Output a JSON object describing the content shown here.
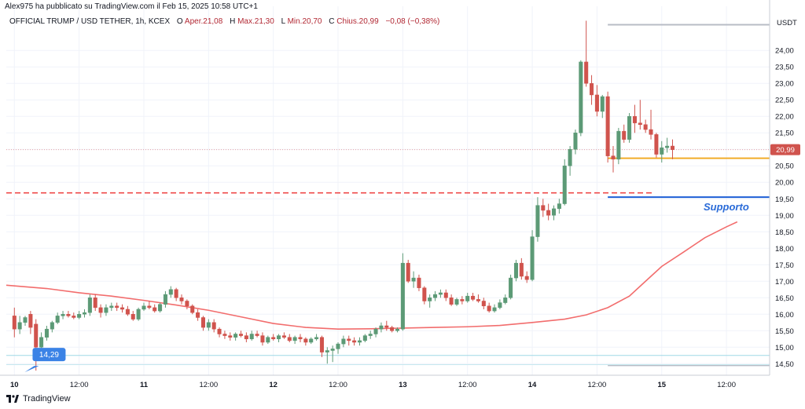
{
  "header": {
    "publisher": "Alex975 ha pubblicato su TradingView.com il Feb 15, 2025 10:58 UTC+1"
  },
  "info": {
    "symbol": "OFFICIAL TRUMP / USD TETHER, 1h, KCEX",
    "open_label": "O",
    "open_val": "Aper.21,08",
    "high_label": "H",
    "high_val": "Max.21,30",
    "low_label": "L",
    "low_val": "Min.20,70",
    "close_label": "C",
    "close_val": "Chius.20,99",
    "change_val": "−0,08 (−0,38%)"
  },
  "footer": {
    "brand": "TradingView"
  },
  "colors": {
    "up": "#5c9a76",
    "down": "#d0534d",
    "ma": "#f26d6d",
    "support_line": "#1e5fd6",
    "support_text": "#2a6bd8",
    "orange_line": "#f0a81e",
    "dashed_red": "#ef4848",
    "price_tag": "#d0534d",
    "low_badge": "#3b83e6"
  },
  "chart_data": {
    "type": "candlestick",
    "timeframe": "1h",
    "quote_currency": "USDT",
    "y_ticks": [
      "24,00",
      "23,50",
      "23,00",
      "22,50",
      "22,00",
      "21,50",
      "21,00",
      "20,50",
      "20,00",
      "19,50",
      "19,00",
      "18,50",
      "18,00",
      "17,50",
      "17,00",
      "16,50",
      "16,00",
      "15,50",
      "15,00",
      "14,50"
    ],
    "y_tick_values": [
      24,
      23.5,
      23,
      22.5,
      22,
      21.5,
      21,
      20.5,
      20,
      19.5,
      19,
      18.5,
      18,
      17.5,
      17,
      16.5,
      16,
      15.5,
      15,
      14.5
    ],
    "ylim": [
      14.15,
      25.1
    ],
    "x_ticks": [
      "10",
      "12:00",
      "11",
      "12:00",
      "12",
      "12:00",
      "13",
      "12:00",
      "14",
      "12:00",
      "15",
      "12:00"
    ],
    "x_tick_hours": [
      0,
      12,
      24,
      36,
      48,
      60,
      72,
      84,
      96,
      108,
      120,
      132
    ],
    "x_range_hours": [
      -1.5,
      140
    ],
    "last_price": 20.99,
    "last_price_label": "20,99",
    "support_level": 19.55,
    "support_label": "Supporto",
    "dashed_level": 19.68,
    "orange_level": 20.73,
    "low_marker": {
      "value": 14.29,
      "label": "14,29",
      "hour": 2.5
    },
    "top_range_line": 24.78,
    "bottom_range_line": 14.45,
    "moving_average": [
      [
        -1.5,
        16.88
      ],
      [
        6,
        16.78
      ],
      [
        12,
        16.65
      ],
      [
        18,
        16.55
      ],
      [
        24,
        16.42
      ],
      [
        30,
        16.28
      ],
      [
        36,
        16.12
      ],
      [
        42,
        15.92
      ],
      [
        48,
        15.72
      ],
      [
        54,
        15.6
      ],
      [
        60,
        15.55
      ],
      [
        66,
        15.56
      ],
      [
        72,
        15.58
      ],
      [
        78,
        15.6
      ],
      [
        84,
        15.62
      ],
      [
        90,
        15.66
      ],
      [
        96,
        15.75
      ],
      [
        102,
        15.85
      ],
      [
        106,
        15.98
      ],
      [
        110,
        16.2
      ],
      [
        114,
        16.55
      ],
      [
        117,
        17.0
      ],
      [
        120,
        17.45
      ],
      [
        124,
        17.88
      ],
      [
        128,
        18.32
      ],
      [
        132,
        18.65
      ],
      [
        134,
        18.8
      ]
    ],
    "candles": [
      [
        0,
        15.95,
        16.2,
        15.3,
        15.55
      ],
      [
        1,
        15.55,
        15.95,
        15.4,
        15.75
      ],
      [
        2,
        15.75,
        15.95,
        15.65,
        15.9
      ],
      [
        3,
        16.0,
        16.1,
        15.4,
        15.6
      ],
      [
        4,
        15.7,
        15.85,
        14.29,
        15.0
      ],
      [
        5,
        15.0,
        15.45,
        14.9,
        15.3
      ],
      [
        6,
        15.3,
        15.65,
        15.2,
        15.55
      ],
      [
        7,
        15.55,
        15.8,
        15.45,
        15.75
      ],
      [
        8,
        15.75,
        16.05,
        15.7,
        15.95
      ],
      [
        9,
        15.95,
        16.1,
        15.85,
        16.0
      ],
      [
        10,
        16.0,
        16.1,
        15.9,
        15.95
      ],
      [
        11,
        15.95,
        16.05,
        15.85,
        15.9
      ],
      [
        12,
        15.9,
        16.1,
        15.85,
        16.0
      ],
      [
        13,
        16.0,
        16.15,
        15.9,
        16.05
      ],
      [
        14,
        16.05,
        16.6,
        15.95,
        16.5
      ],
      [
        15,
        16.5,
        16.6,
        16.1,
        16.2
      ],
      [
        16,
        16.2,
        16.3,
        15.9,
        16.05
      ],
      [
        17,
        16.05,
        16.3,
        15.95,
        16.2
      ],
      [
        18,
        16.2,
        16.35,
        16.1,
        16.25
      ],
      [
        19,
        16.25,
        16.35,
        16.1,
        16.2
      ],
      [
        20,
        16.2,
        16.3,
        16.05,
        16.15
      ],
      [
        21,
        16.15,
        16.25,
        15.95,
        16.0
      ],
      [
        22,
        16.0,
        16.1,
        15.8,
        15.85
      ],
      [
        23,
        15.85,
        16.2,
        15.8,
        16.15
      ],
      [
        24,
        16.15,
        16.35,
        16.1,
        16.25
      ],
      [
        25,
        16.25,
        16.4,
        16.15,
        16.2
      ],
      [
        26,
        16.2,
        16.3,
        16.05,
        16.1
      ],
      [
        27,
        16.1,
        16.35,
        16.05,
        16.3
      ],
      [
        28,
        16.3,
        16.7,
        16.2,
        16.6
      ],
      [
        29,
        16.6,
        16.85,
        16.5,
        16.75
      ],
      [
        30,
        16.75,
        16.8,
        16.4,
        16.5
      ],
      [
        31,
        16.5,
        16.6,
        16.3,
        16.4
      ],
      [
        32,
        16.4,
        16.45,
        16.15,
        16.25
      ],
      [
        33,
        16.25,
        16.3,
        16.0,
        16.05
      ],
      [
        34,
        16.05,
        16.15,
        15.8,
        15.9
      ],
      [
        35,
        15.9,
        15.95,
        15.5,
        15.6
      ],
      [
        36,
        15.6,
        15.85,
        15.5,
        15.75
      ],
      [
        37,
        15.75,
        15.85,
        15.45,
        15.55
      ],
      [
        38,
        15.55,
        15.6,
        15.3,
        15.4
      ],
      [
        39,
        15.4,
        15.5,
        15.25,
        15.35
      ],
      [
        40,
        15.35,
        15.45,
        15.2,
        15.3
      ],
      [
        41,
        15.3,
        15.45,
        15.2,
        15.4
      ],
      [
        42,
        15.4,
        15.5,
        15.3,
        15.35
      ],
      [
        43,
        15.35,
        15.45,
        15.15,
        15.25
      ],
      [
        44,
        15.25,
        15.5,
        15.2,
        15.4
      ],
      [
        45,
        15.4,
        15.5,
        15.3,
        15.35
      ],
      [
        46,
        15.35,
        15.45,
        15.05,
        15.15
      ],
      [
        47,
        15.15,
        15.35,
        15.1,
        15.3
      ],
      [
        48,
        15.3,
        15.4,
        15.2,
        15.25
      ],
      [
        49,
        15.25,
        15.4,
        15.15,
        15.35
      ],
      [
        50,
        15.35,
        15.45,
        15.25,
        15.3
      ],
      [
        51,
        15.3,
        15.4,
        15.15,
        15.2
      ],
      [
        52,
        15.2,
        15.35,
        15.1,
        15.3
      ],
      [
        53,
        15.3,
        15.4,
        15.15,
        15.25
      ],
      [
        54,
        15.25,
        15.3,
        15.05,
        15.15
      ],
      [
        55,
        15.15,
        15.3,
        15.1,
        15.25
      ],
      [
        56,
        15.25,
        15.4,
        15.2,
        15.3
      ],
      [
        57,
        15.3,
        15.35,
        14.7,
        14.85
      ],
      [
        58,
        14.85,
        15.0,
        14.5,
        14.9
      ],
      [
        59,
        14.9,
        15.05,
        14.55,
        14.95
      ],
      [
        60,
        14.95,
        15.15,
        14.8,
        15.1
      ],
      [
        61,
        15.1,
        15.35,
        15.0,
        15.25
      ],
      [
        62,
        15.25,
        15.35,
        15.05,
        15.2
      ],
      [
        63,
        15.2,
        15.3,
        15.05,
        15.15
      ],
      [
        64,
        15.15,
        15.3,
        15.05,
        15.2
      ],
      [
        65,
        15.2,
        15.4,
        15.15,
        15.35
      ],
      [
        66,
        15.35,
        15.5,
        15.25,
        15.4
      ],
      [
        67,
        15.4,
        15.6,
        15.3,
        15.55
      ],
      [
        68,
        15.55,
        15.75,
        15.45,
        15.65
      ],
      [
        69,
        15.65,
        15.8,
        15.5,
        15.6
      ],
      [
        70,
        15.6,
        15.65,
        15.45,
        15.5
      ],
      [
        71,
        15.5,
        15.6,
        15.45,
        15.55
      ],
      [
        72,
        15.55,
        17.85,
        15.5,
        17.55
      ],
      [
        73,
        17.55,
        17.65,
        16.95,
        17.0
      ],
      [
        74,
        17.0,
        17.3,
        16.8,
        17.1
      ],
      [
        75,
        17.1,
        17.2,
        16.7,
        16.8
      ],
      [
        76,
        16.8,
        16.85,
        16.3,
        16.4
      ],
      [
        77,
        16.4,
        16.6,
        16.2,
        16.5
      ],
      [
        78,
        16.5,
        16.7,
        16.4,
        16.6
      ],
      [
        79,
        16.6,
        16.75,
        16.5,
        16.65
      ],
      [
        80,
        16.65,
        16.75,
        16.4,
        16.5
      ],
      [
        81,
        16.5,
        16.6,
        16.25,
        16.3
      ],
      [
        82,
        16.3,
        16.5,
        16.25,
        16.45
      ],
      [
        83,
        16.45,
        16.55,
        16.3,
        16.4
      ],
      [
        84,
        16.4,
        16.65,
        16.35,
        16.55
      ],
      [
        85,
        16.55,
        16.65,
        16.4,
        16.45
      ],
      [
        86,
        16.45,
        16.6,
        16.35,
        16.4
      ],
      [
        87,
        16.4,
        16.5,
        16.15,
        16.25
      ],
      [
        88,
        16.25,
        16.35,
        16.05,
        16.1
      ],
      [
        89,
        16.1,
        16.3,
        16.05,
        16.2
      ],
      [
        90,
        16.2,
        16.45,
        16.15,
        16.35
      ],
      [
        91,
        16.35,
        16.6,
        16.3,
        16.5
      ],
      [
        92,
        16.5,
        17.2,
        16.45,
        17.1
      ],
      [
        93,
        17.1,
        17.65,
        17.0,
        17.55
      ],
      [
        94,
        17.55,
        17.7,
        17.05,
        17.15
      ],
      [
        95,
        17.15,
        17.3,
        16.95,
        17.05
      ],
      [
        96,
        17.05,
        18.55,
        17.0,
        18.35
      ],
      [
        97,
        18.35,
        19.55,
        18.2,
        19.3
      ],
      [
        98,
        19.3,
        19.5,
        18.95,
        19.15
      ],
      [
        99,
        19.15,
        19.35,
        18.85,
        19.0
      ],
      [
        100,
        19.0,
        19.3,
        18.85,
        19.2
      ],
      [
        101,
        19.2,
        19.5,
        19.05,
        19.35
      ],
      [
        102,
        19.35,
        20.7,
        19.3,
        20.5
      ],
      [
        103,
        20.5,
        21.1,
        20.2,
        21.0
      ],
      [
        104,
        21.0,
        21.6,
        20.85,
        21.5
      ],
      [
        105,
        21.5,
        23.7,
        21.4,
        23.65
      ],
      [
        106,
        23.65,
        24.9,
        22.9,
        23.0
      ],
      [
        107,
        23.0,
        23.25,
        22.35,
        22.65
      ],
      [
        108,
        22.65,
        22.95,
        22.0,
        22.15
      ],
      [
        109,
        22.15,
        22.65,
        21.95,
        22.6
      ],
      [
        110,
        22.6,
        22.75,
        20.6,
        20.8
      ],
      [
        111,
        20.8,
        21.1,
        20.3,
        20.7
      ],
      [
        112,
        20.7,
        21.65,
        20.55,
        21.55
      ],
      [
        113,
        21.55,
        21.75,
        21.2,
        21.3
      ],
      [
        114,
        21.3,
        22.1,
        21.2,
        22.0
      ],
      [
        115,
        22.0,
        22.35,
        21.5,
        21.8
      ],
      [
        116,
        21.8,
        22.5,
        21.6,
        21.75
      ],
      [
        117,
        21.75,
        21.9,
        21.5,
        21.6
      ],
      [
        118,
        21.6,
        22.2,
        21.3,
        21.45
      ],
      [
        119,
        21.45,
        21.5,
        20.75,
        20.85
      ],
      [
        120,
        20.85,
        21.25,
        20.6,
        21.05
      ],
      [
        121,
        21.05,
        21.35,
        20.9,
        21.1
      ],
      [
        122,
        21.1,
        21.3,
        20.7,
        20.99
      ]
    ]
  }
}
